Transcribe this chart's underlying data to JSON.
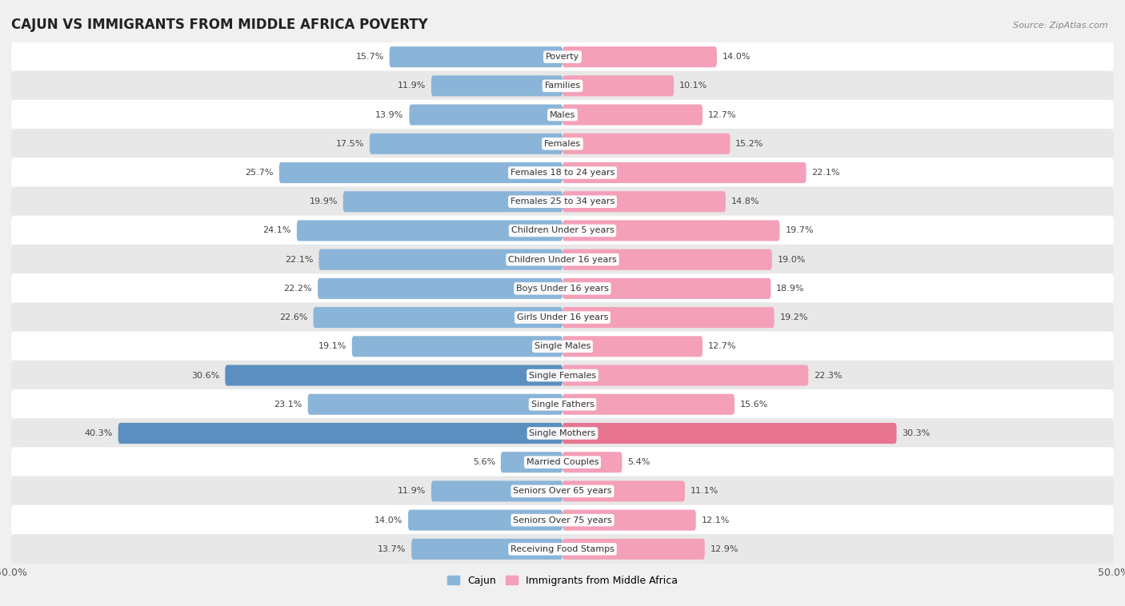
{
  "title": "CAJUN VS IMMIGRANTS FROM MIDDLE AFRICA POVERTY",
  "source": "Source: ZipAtlas.com",
  "categories": [
    "Poverty",
    "Families",
    "Males",
    "Females",
    "Females 18 to 24 years",
    "Females 25 to 34 years",
    "Children Under 5 years",
    "Children Under 16 years",
    "Boys Under 16 years",
    "Girls Under 16 years",
    "Single Males",
    "Single Females",
    "Single Fathers",
    "Single Mothers",
    "Married Couples",
    "Seniors Over 65 years",
    "Seniors Over 75 years",
    "Receiving Food Stamps"
  ],
  "cajun_values": [
    15.7,
    11.9,
    13.9,
    17.5,
    25.7,
    19.9,
    24.1,
    22.1,
    22.2,
    22.6,
    19.1,
    30.6,
    23.1,
    40.3,
    5.6,
    11.9,
    14.0,
    13.7
  ],
  "immigrants_values": [
    14.0,
    10.1,
    12.7,
    15.2,
    22.1,
    14.8,
    19.7,
    19.0,
    18.9,
    19.2,
    12.7,
    22.3,
    15.6,
    30.3,
    5.4,
    11.1,
    12.1,
    12.9
  ],
  "cajun_color": "#8ab4d8",
  "immigrants_color": "#f4a0b8",
  "highlight_cajun": [
    11,
    13
  ],
  "highlight_immigrants": [
    13
  ],
  "highlight_cajun_color": "#5b8fbf",
  "highlight_immigrants_color": "#e8758f",
  "background_color": "#f0f0f0",
  "row_colors": [
    "#ffffff",
    "#e8e8e8"
  ],
  "axis_max": 50.0,
  "legend_cajun": "Cajun",
  "legend_immigrants": "Immigrants from Middle Africa",
  "title_fontsize": 12,
  "label_fontsize": 8.0,
  "value_fontsize": 8.0,
  "bar_height": 0.72
}
